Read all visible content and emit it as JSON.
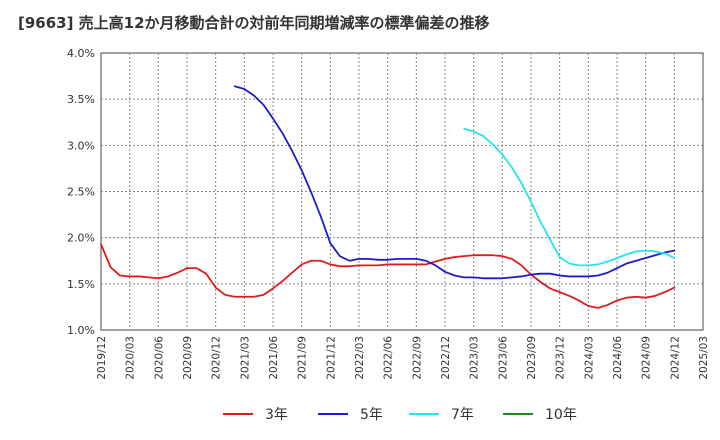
{
  "chart_data": {
    "type": "line",
    "title": "[9663]  売上高12か月移動合計の対前年同期増減率の標準偏差の推移",
    "xlabel": "",
    "ylabel": "",
    "ylim": [
      1.0,
      4.0
    ],
    "y_ticks": [
      "1.0%",
      "1.5%",
      "2.0%",
      "2.5%",
      "3.0%",
      "3.5%",
      "4.0%"
    ],
    "x_ticks": [
      "2019/12",
      "2020/03",
      "2020/06",
      "2020/09",
      "2020/12",
      "2021/03",
      "2021/06",
      "2021/09",
      "2021/12",
      "2022/03",
      "2022/06",
      "2022/09",
      "2022/12",
      "2023/03",
      "2023/06",
      "2023/09",
      "2023/12",
      "2024/03",
      "2024/06",
      "2024/09",
      "2024/12",
      "2025/03"
    ],
    "grid": true,
    "legend_position": "bottom",
    "series": [
      {
        "name": "3年",
        "color": "#dd1c1c",
        "start": "2019/12",
        "values": [
          1.93,
          1.68,
          1.59,
          1.58,
          1.58,
          1.57,
          1.56,
          1.58,
          1.62,
          1.67,
          1.67,
          1.61,
          1.46,
          1.38,
          1.36,
          1.36,
          1.36,
          1.38,
          1.45,
          1.53,
          1.62,
          1.71,
          1.75,
          1.75,
          1.71,
          1.69,
          1.69,
          1.7,
          1.7,
          1.7,
          1.71,
          1.71,
          1.71,
          1.71,
          1.71,
          1.74,
          1.77,
          1.79,
          1.8,
          1.81,
          1.81,
          1.81,
          1.8,
          1.77,
          1.7,
          1.6,
          1.52,
          1.45,
          1.41,
          1.37,
          1.32,
          1.26,
          1.24,
          1.27,
          1.32,
          1.35,
          1.36,
          1.35,
          1.37,
          1.41,
          1.46
        ]
      },
      {
        "name": "5年",
        "color": "#1c1ccc",
        "start": "2021/02",
        "values": [
          3.64,
          3.61,
          3.54,
          3.44,
          3.29,
          3.13,
          2.94,
          2.73,
          2.49,
          2.23,
          1.94,
          1.8,
          1.75,
          1.77,
          1.77,
          1.76,
          1.76,
          1.77,
          1.77,
          1.77,
          1.75,
          1.7,
          1.63,
          1.59,
          1.57,
          1.57,
          1.56,
          1.56,
          1.56,
          1.57,
          1.58,
          1.6,
          1.61,
          1.61,
          1.59,
          1.58,
          1.58,
          1.58,
          1.59,
          1.62,
          1.67,
          1.72,
          1.75,
          1.78,
          1.81,
          1.84,
          1.86
        ]
      },
      {
        "name": "7年",
        "color": "#22e5ee",
        "start": "2023/02",
        "values": [
          3.18,
          3.15,
          3.1,
          3.01,
          2.9,
          2.76,
          2.59,
          2.39,
          2.17,
          1.98,
          1.79,
          1.72,
          1.7,
          1.7,
          1.71,
          1.74,
          1.78,
          1.82,
          1.85,
          1.86,
          1.85,
          1.83,
          1.78
        ]
      },
      {
        "name": "10年",
        "color": "#1a8c1a",
        "start": "2019/12",
        "values": []
      }
    ]
  }
}
